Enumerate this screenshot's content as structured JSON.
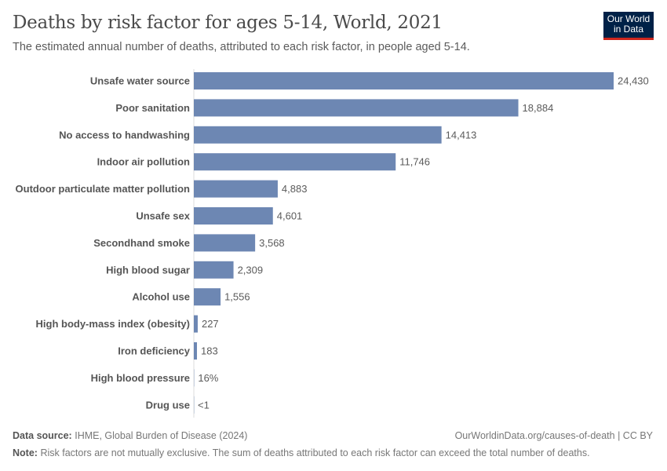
{
  "header": {
    "title": "Deaths by risk factor for ages 5-14, World, 2021",
    "subtitle": "The estimated annual number of deaths, attributed to each risk factor, in people aged 5-14.",
    "logo": "Our World in Data"
  },
  "chart_data": {
    "type": "bar",
    "orientation": "horizontal",
    "title": "Deaths by risk factor for ages 5-14, World, 2021",
    "categories": [
      "Unsafe water source",
      "Poor sanitation",
      "No access to handwashing",
      "Indoor air pollution",
      "Outdoor particulate matter pollution",
      "Unsafe sex",
      "Secondhand smoke",
      "High blood sugar",
      "Alcohol use",
      "High body-mass index (obesity)",
      "Iron deficiency",
      "High blood pressure",
      "Drug use"
    ],
    "values": [
      24430,
      18884,
      14413,
      11746,
      4883,
      4601,
      3568,
      2309,
      1556,
      227,
      183,
      16,
      0.5
    ],
    "value_labels": [
      "24,430",
      "18,884",
      "14,413",
      "11,746",
      "4,883",
      "4,601",
      "3,568",
      "2,309",
      "1,556",
      "227",
      "183",
      "16%",
      "<1"
    ],
    "bar_color": "#6d87b3"
  },
  "footer": {
    "source_label": "Data source:",
    "source": "IHME, Global Burden of Disease (2024)",
    "url": "OurWorldinData.org/causes-of-death | CC BY",
    "note_label": "Note:",
    "note": "Risk factors are not mutually exclusive. The sum of deaths attributed to each risk factor can exceed the total number of deaths."
  }
}
